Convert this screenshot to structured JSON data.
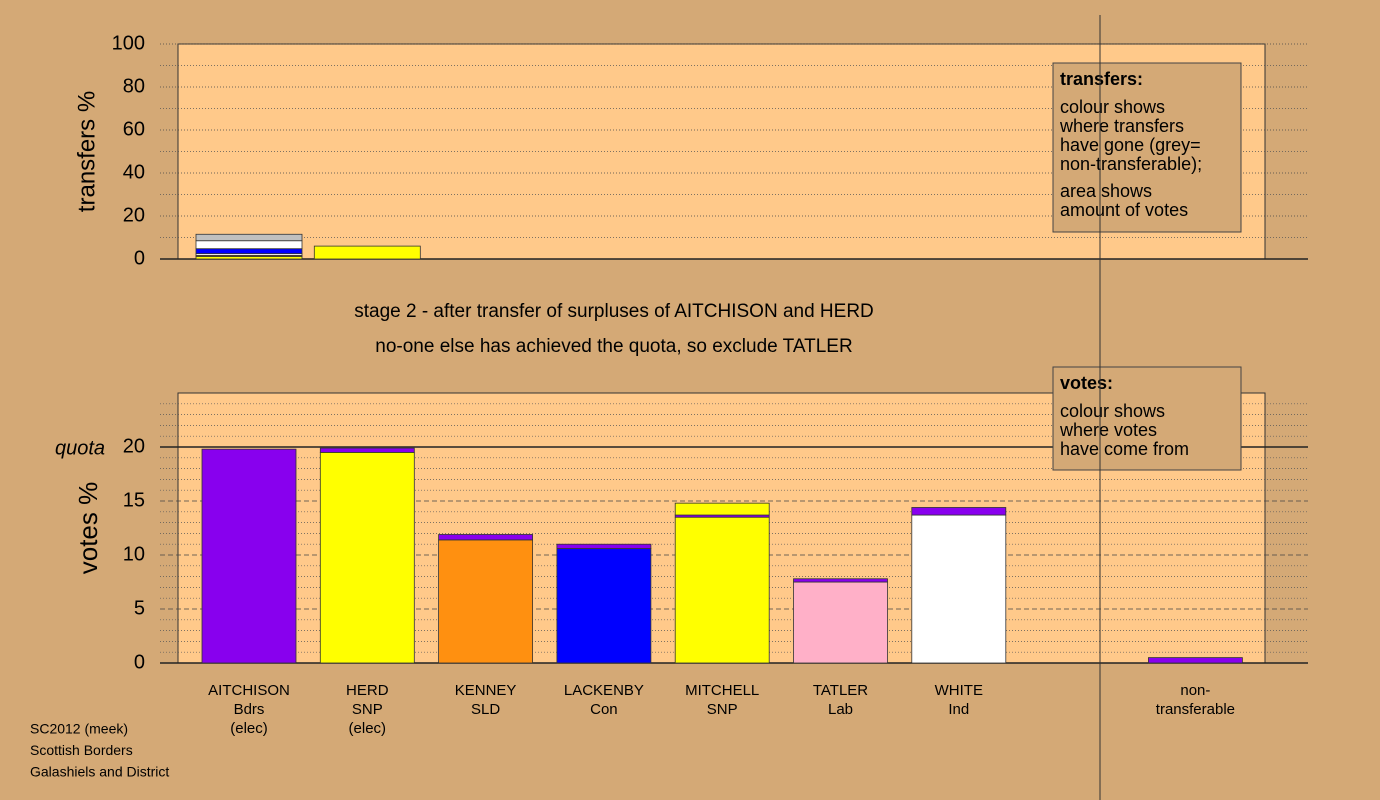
{
  "chart_data": [
    {
      "type": "stacked-bar",
      "ylabel": "transfers %",
      "ylim": [
        0,
        100
      ],
      "yticks": [
        0,
        20,
        40,
        60,
        80,
        100
      ],
      "yminorticks": [
        10,
        30,
        50,
        70,
        90
      ],
      "stacks": [
        [
          {
            "color": "#ffff00",
            "value": 1.2
          },
          {
            "color": "#ff9010",
            "value": 0.5
          },
          {
            "color": "#ffffff",
            "value": 0.8
          },
          {
            "color": "#0000ff",
            "value": 2.3
          },
          {
            "color": "#ffffff",
            "value": 3.7
          },
          {
            "color": "#c0c0c0",
            "value": 3.0
          }
        ],
        [
          {
            "color": "#ffff00",
            "value": 6.0
          }
        ]
      ],
      "note": {
        "title": "transfers:",
        "paragraphs": [
          [
            "colour shows",
            "where transfers",
            "have gone (grey=",
            "non-transferable);"
          ],
          [
            "area shows",
            "amount of votes"
          ]
        ]
      }
    },
    {
      "type": "stacked-bar",
      "ylabel": "votes %",
      "ylim": [
        0,
        25
      ],
      "yticks": [
        0,
        5,
        10,
        15,
        20
      ],
      "yminorticks": [
        1,
        2,
        3,
        4,
        6,
        7,
        8,
        9,
        11,
        12,
        13,
        14,
        16,
        17,
        18,
        19,
        21,
        22,
        23,
        24
      ],
      "quota": {
        "value": 20,
        "label": "quota"
      },
      "categories": [
        [
          "AITCHISON",
          "Bdrs",
          "(elec)"
        ],
        [
          "HERD",
          "SNP",
          "(elec)"
        ],
        [
          "KENNEY",
          "SLD"
        ],
        [
          "LACKENBY",
          "Con"
        ],
        [
          "MITCHELL",
          "SNP"
        ],
        [
          "TATLER",
          "Lab"
        ],
        [
          "WHITE",
          "Ind"
        ],
        null,
        [
          "non-",
          "transferable"
        ]
      ],
      "stacks": [
        [
          {
            "color": "#8800ee",
            "value": 19.8
          }
        ],
        [
          {
            "color": "#ffff00",
            "value": 19.5
          },
          {
            "color": "#8800ee",
            "value": 0.4
          }
        ],
        [
          {
            "color": "#ff9010",
            "value": 11.4
          },
          {
            "color": "#8800ee",
            "value": 0.5
          }
        ],
        [
          {
            "color": "#0000ff",
            "value": 10.6
          },
          {
            "color": "#8800ee",
            "value": 0.4
          }
        ],
        [
          {
            "color": "#ffff00",
            "value": 13.5
          },
          {
            "color": "#8800ee",
            "value": 0.2
          },
          {
            "color": "#ffff00",
            "value": 1.1
          }
        ],
        [
          {
            "color": "#ffb0c8",
            "value": 7.5
          },
          {
            "color": "#8800ee",
            "value": 0.3
          }
        ],
        [
          {
            "color": "#ffffff",
            "value": 13.7
          },
          {
            "color": "#8800ee",
            "value": 0.7
          }
        ],
        null,
        [
          {
            "color": "#8800ee",
            "value": 0.5
          }
        ]
      ],
      "note": {
        "title": "votes:",
        "paragraphs": [
          [
            "colour shows",
            "where votes",
            "have come from"
          ]
        ]
      }
    }
  ],
  "captions": [
    "stage 2 - after transfer of surpluses of AITCHISON and HERD",
    "no-one else has achieved the quota, so exclude TATLER"
  ],
  "footer": [
    "SC2012 (meek)",
    "Scottish Borders",
    "Galashiels and District"
  ]
}
